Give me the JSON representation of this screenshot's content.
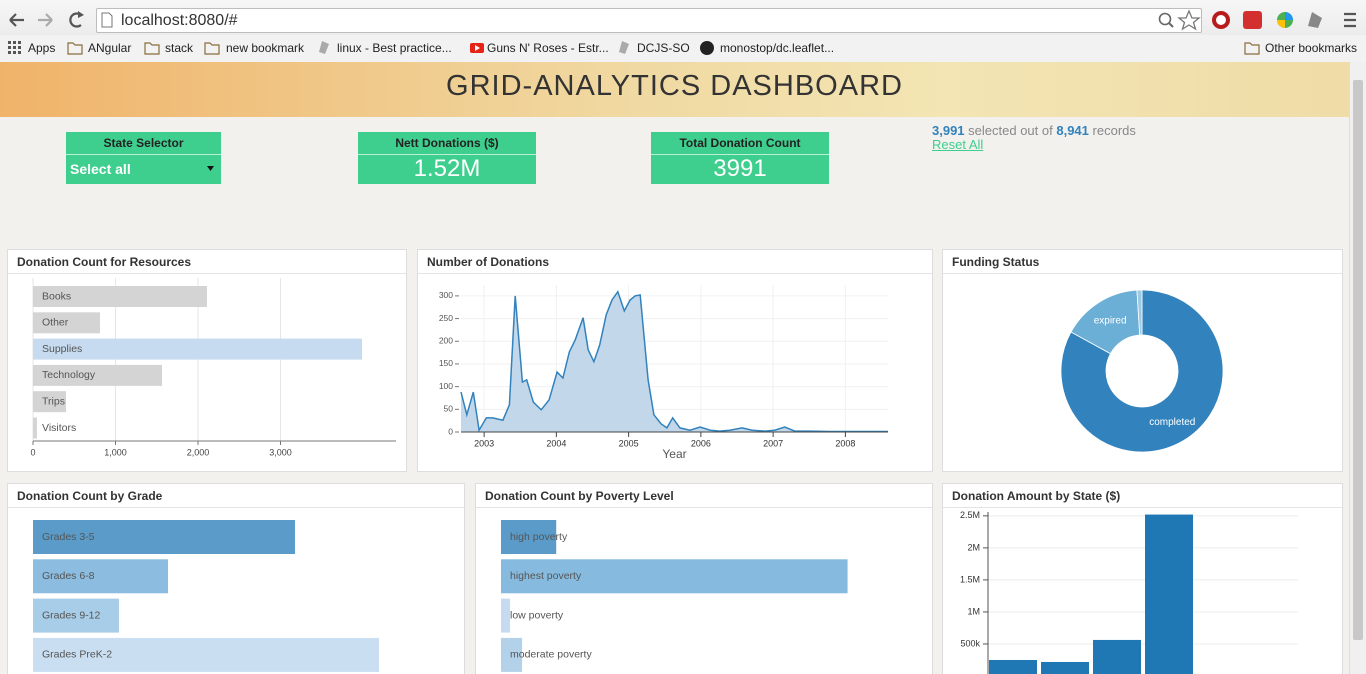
{
  "browser": {
    "url": "localhost:8080/#",
    "bookmarks": [
      "Apps",
      "ANgular",
      "stack",
      "new bookmark",
      "linux - Best practice...",
      "Guns N' Roses - Estr...",
      "DCJS-SO",
      "monostop/dc.leaflet..."
    ],
    "other_bookmarks": "Other bookmarks"
  },
  "header": {
    "title": "GRID-ANALYTICS DASHBOARD"
  },
  "widgets": {
    "state_selector": {
      "label": "State Selector",
      "value": "Select all"
    },
    "nett_donations": {
      "label": "Nett Donations ($)",
      "value": "1.52M"
    },
    "donation_count": {
      "label": "Total Donation Count",
      "value": "3991"
    }
  },
  "records": {
    "selected": "3,991",
    "middle": "selected out of",
    "total": "8,941",
    "end": "records",
    "reset": "Reset All"
  },
  "chart_data": [
    {
      "type": "bar",
      "horizontal": true,
      "title": "Donation Count for Resources",
      "categories": [
        "Books",
        "Other",
        "Supplies",
        "Technology",
        "Trips",
        "Visitors"
      ],
      "values": [
        2109,
        812,
        3988,
        1564,
        400,
        48
      ],
      "colors": [
        "#d4d4d4",
        "#d4d4d4",
        "#c6dbef",
        "#d4d4d4",
        "#d4d4d4",
        "#d4d4d4"
      ],
      "xlim": [
        0,
        4400
      ],
      "xticks": [
        0,
        {
          "value": 1000,
          "label": "1,000"
        },
        {
          "value": 2000,
          "label": "2,000"
        },
        {
          "value": 3000,
          "label": "3,000"
        }
      ],
      "grid": true
    },
    {
      "type": "area",
      "title": "Number of Donations",
      "xlabel": "Year",
      "x": [
        2002.68,
        2002.76,
        2002.85,
        2002.93,
        2003.03,
        2003.12,
        2003.26,
        2003.35,
        2003.43,
        2003.53,
        2003.59,
        2003.68,
        2003.79,
        2003.9,
        2004.01,
        2004.09,
        2004.18,
        2004.26,
        2004.37,
        2004.44,
        2004.52,
        2004.6,
        2004.69,
        2004.77,
        2004.85,
        2004.94,
        2005.02,
        2005.09,
        2005.16,
        2005.27,
        2005.35,
        2005.45,
        2005.53,
        2005.61,
        2005.71,
        2005.85,
        2005.99,
        2006.13,
        2006.26,
        2006.4,
        2006.57,
        2006.71,
        2006.89,
        2007.02,
        2007.16,
        2007.3,
        2007.51,
        2007.79,
        2008.06,
        2008.34,
        2008.59
      ],
      "values": [
        88,
        38,
        88,
        4,
        31,
        31,
        26,
        60,
        300,
        110,
        115,
        66,
        49,
        71,
        132,
        119,
        177,
        203,
        252,
        181,
        155,
        192,
        258,
        291,
        309,
        267,
        291,
        300,
        302,
        115,
        38,
        18,
        9,
        31,
        9,
        4,
        11,
        4,
        2,
        4,
        9,
        4,
        2,
        4,
        11,
        2,
        2,
        1,
        1,
        1,
        1
      ],
      "color": "#3182bd",
      "fill": "#c3d7ea",
      "xlim": [
        2002.68,
        2008.59
      ],
      "xticks": [
        2003,
        2004,
        2005,
        2006,
        2007,
        2008
      ],
      "ylim": [
        0,
        324
      ],
      "yticks": [
        0,
        50,
        100,
        150,
        200,
        250,
        300
      ],
      "grid": true
    },
    {
      "type": "donut",
      "title": "Funding Status",
      "categories": [
        "completed",
        "expired",
        null
      ],
      "values": [
        83,
        16,
        1
      ],
      "colors": [
        "#3182bd",
        "#6baed6",
        "#9ecae1"
      ]
    },
    {
      "type": "bar",
      "horizontal": true,
      "title": "Donation Count by Grade",
      "categories": [
        "Grades 3-5",
        "Grades 6-8",
        "Grades 9-12",
        "Grades PreK-2"
      ],
      "values": [
        2495,
        1286,
        819,
        3295
      ],
      "colors": [
        "#5a9bc9",
        "#8cbde0",
        "#a8cde8",
        "#c9def0"
      ],
      "xlim": [
        0,
        4000
      ]
    },
    {
      "type": "bar",
      "horizontal": true,
      "title": "Donation Count by Poverty Level",
      "categories": [
        "high poverty",
        "highest poverty",
        "low poverty",
        "moderate poverty"
      ],
      "values": [
        516,
        3239,
        85,
        197
      ],
      "colors": [
        "#5a9bc9",
        "#86bbdf",
        "#c6dbef",
        "#b3d2ea"
      ],
      "xlim": [
        0,
        4000
      ]
    },
    {
      "type": "bar",
      "title": "Donation Amount by State ($)",
      "categories": [
        null,
        null,
        null,
        null
      ],
      "values": [
        250000,
        219000,
        563000,
        2520000
      ],
      "color": "#1f77b4",
      "ylim": [
        0,
        2560000
      ],
      "yticks": [
        {
          "value": 500000,
          "label": "500k"
        },
        {
          "value": 1000000,
          "label": "1M"
        },
        {
          "value": 1500000,
          "label": "1.5M"
        },
        {
          "value": 2000000,
          "label": "2M"
        },
        {
          "value": 2500000,
          "label": "2.5M"
        }
      ],
      "grid": true
    }
  ]
}
